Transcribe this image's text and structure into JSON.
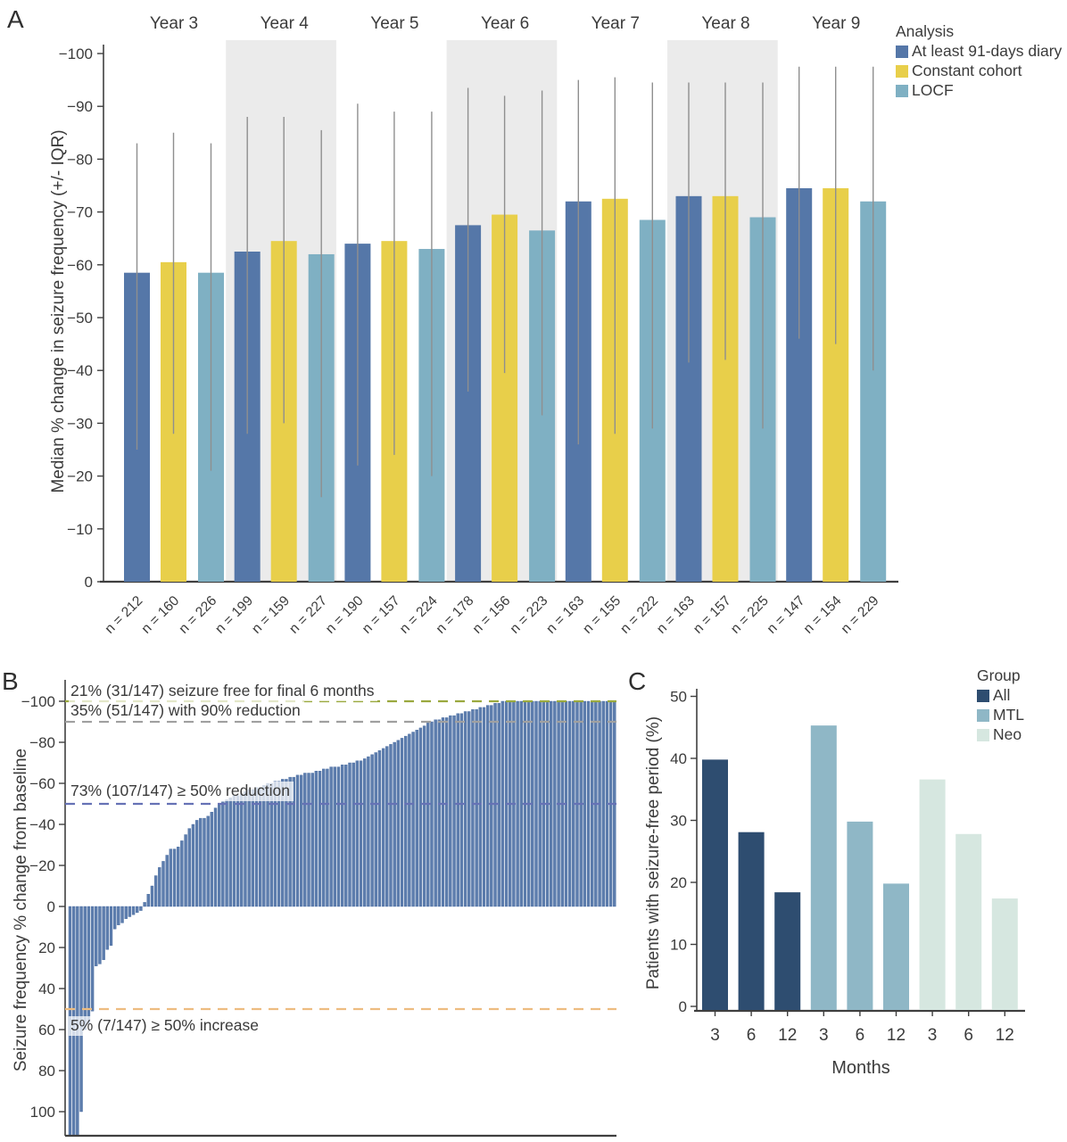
{
  "figure": {
    "background": "#ffffff",
    "text_color": "#3b3b3b",
    "axis_color": "#3f3f3f"
  },
  "chart_data": [
    {
      "id": "A",
      "panel_letter": "A",
      "type": "bar",
      "ylabel": "Median % change in seizure frequency (+/- IQR)",
      "ylim": [
        0,
        -100
      ],
      "y_tick_step": 10,
      "legend_title": "Analysis",
      "legend_position": "top-right",
      "grid": false,
      "band_color": "#ebebeb",
      "whisker_color": "#8f8f8f",
      "n_prefix": "n = ",
      "series": [
        {
          "name": "At least 91-days diary",
          "color": "#5577a8"
        },
        {
          "name": "Constant cohort",
          "color": "#e8cf4a"
        },
        {
          "name": "LOCF",
          "color": "#7fb0c3"
        }
      ],
      "groups": [
        {
          "label": "Year 3",
          "shaded": false,
          "medians": [
            -58.5,
            -60.5,
            -58.5
          ],
          "iqr_low": [
            -25,
            -28,
            -21
          ],
          "iqr_high": [
            -83,
            -85,
            -83
          ],
          "n": [
            212,
            160,
            226
          ]
        },
        {
          "label": "Year 4",
          "shaded": true,
          "medians": [
            -62.5,
            -64.5,
            -62
          ],
          "iqr_low": [
            -28,
            -30,
            -16
          ],
          "iqr_high": [
            -88,
            -88,
            -85.5
          ],
          "n": [
            199,
            159,
            227
          ]
        },
        {
          "label": "Year 5",
          "shaded": false,
          "medians": [
            -64,
            -64.5,
            -63
          ],
          "iqr_low": [
            -22,
            -24,
            -20
          ],
          "iqr_high": [
            -90.5,
            -89,
            -89
          ],
          "n": [
            190,
            157,
            224
          ]
        },
        {
          "label": "Year 6",
          "shaded": true,
          "medians": [
            -67.5,
            -69.5,
            -66.5
          ],
          "iqr_low": [
            -36,
            -39.5,
            -31.5
          ],
          "iqr_high": [
            -93.5,
            -92,
            -93
          ],
          "n": [
            178,
            156,
            223
          ]
        },
        {
          "label": "Year 7",
          "shaded": false,
          "medians": [
            -72,
            -72.5,
            -68.5
          ],
          "iqr_low": [
            -26,
            -28,
            -29
          ],
          "iqr_high": [
            -95,
            -95.5,
            -94.5
          ],
          "n": [
            163,
            155,
            222
          ]
        },
        {
          "label": "Year 8",
          "shaded": true,
          "medians": [
            -73,
            -73,
            -69
          ],
          "iqr_low": [
            -41.5,
            -42,
            -29
          ],
          "iqr_high": [
            -94.5,
            -94.5,
            -94.5
          ],
          "n": [
            163,
            157,
            225
          ]
        },
        {
          "label": "Year 9",
          "shaded": false,
          "medians": [
            -74.5,
            -74.5,
            -72
          ],
          "iqr_low": [
            -46,
            -45,
            -40
          ],
          "iqr_high": [
            -97.5,
            -97.5,
            -97.5
          ],
          "n": [
            147,
            154,
            229
          ]
        }
      ]
    },
    {
      "id": "B",
      "panel_letter": "B",
      "type": "bar",
      "subtype": "waterfall",
      "ylabel": "Seizure frequency % change from baseline",
      "y_ticks": [
        -100,
        -80,
        -60,
        -40,
        -20,
        0,
        20,
        40,
        60,
        80,
        100
      ],
      "y_axis_inverted": true,
      "n_patients": 147,
      "bar_color": "#5d7dad",
      "bar_stroke": "#44689e",
      "values": [
        115,
        114,
        112,
        100,
        60,
        57,
        51,
        29,
        28,
        26,
        21,
        19,
        11,
        9,
        8,
        6,
        5,
        4,
        3,
        2,
        -2,
        -6,
        -10,
        -15,
        -19,
        -22,
        -25,
        -28,
        -28,
        -29,
        -32,
        -35,
        -38,
        -40,
        -42,
        -43,
        -43,
        -44,
        -46,
        -48,
        -50,
        -51,
        -52,
        -53,
        -54,
        -54,
        -55,
        -56,
        -57,
        -57,
        -58,
        -58,
        -59,
        -60,
        -60,
        -61,
        -61,
        -62,
        -62,
        -63,
        -63,
        -64,
        -64,
        -65,
        -65,
        -65,
        -66,
        -66,
        -67,
        -67,
        -68,
        -68,
        -68,
        -69,
        -69,
        -70,
        -70,
        -71,
        -71,
        -72,
        -73,
        -74,
        -75,
        -76,
        -77,
        -78,
        -79,
        -80,
        -81,
        -82,
        -83,
        -84,
        -85,
        -86,
        -87,
        -88,
        -90,
        -90,
        -91,
        -91,
        -92,
        -92,
        -93,
        -93,
        -94,
        -94,
        -95,
        -95,
        -96,
        -96,
        -97,
        -97,
        -98,
        -98,
        -99,
        -99,
        -100,
        -100,
        -100,
        -100,
        -100,
        -100,
        -100,
        -100,
        -100,
        -100,
        -100,
        -100,
        -100,
        -100,
        -100,
        -100,
        -100,
        -100,
        -100,
        -100,
        -100,
        -100,
        -100,
        -100,
        -100,
        -100,
        -100,
        -100,
        -100,
        -100,
        -100
      ],
      "reference_lines": [
        {
          "value": -100,
          "color": "#9aa93f",
          "label": "21% (31/147) seizure free for final 6 months"
        },
        {
          "value": -90,
          "color": "#a0a0a0",
          "label": "35% (51/147) with 90% reduction"
        },
        {
          "value": -50,
          "color": "#6672b5",
          "label": "73% (107/147) ≥ 50% reduction"
        },
        {
          "value": 50,
          "color": "#edbc80",
          "label": "5% (7/147) ≥ 50% increase"
        }
      ]
    },
    {
      "id": "C",
      "panel_letter": "C",
      "type": "bar",
      "ylabel": "Patients with seizure-free period (%)",
      "xlabel": "Months",
      "ylim": [
        0,
        50
      ],
      "y_tick_step": 10,
      "legend_title": "Group",
      "categories": [
        "3",
        "6",
        "12"
      ],
      "series": [
        {
          "name": "All",
          "color": "#2e4d70",
          "values": [
            39.8,
            28.1,
            18.4
          ]
        },
        {
          "name": "MTL",
          "color": "#8fb7c6",
          "values": [
            45.3,
            29.8,
            19.8
          ]
        },
        {
          "name": "Neo",
          "color": "#d6e7e0",
          "values": [
            36.6,
            27.8,
            17.4
          ]
        }
      ]
    }
  ]
}
